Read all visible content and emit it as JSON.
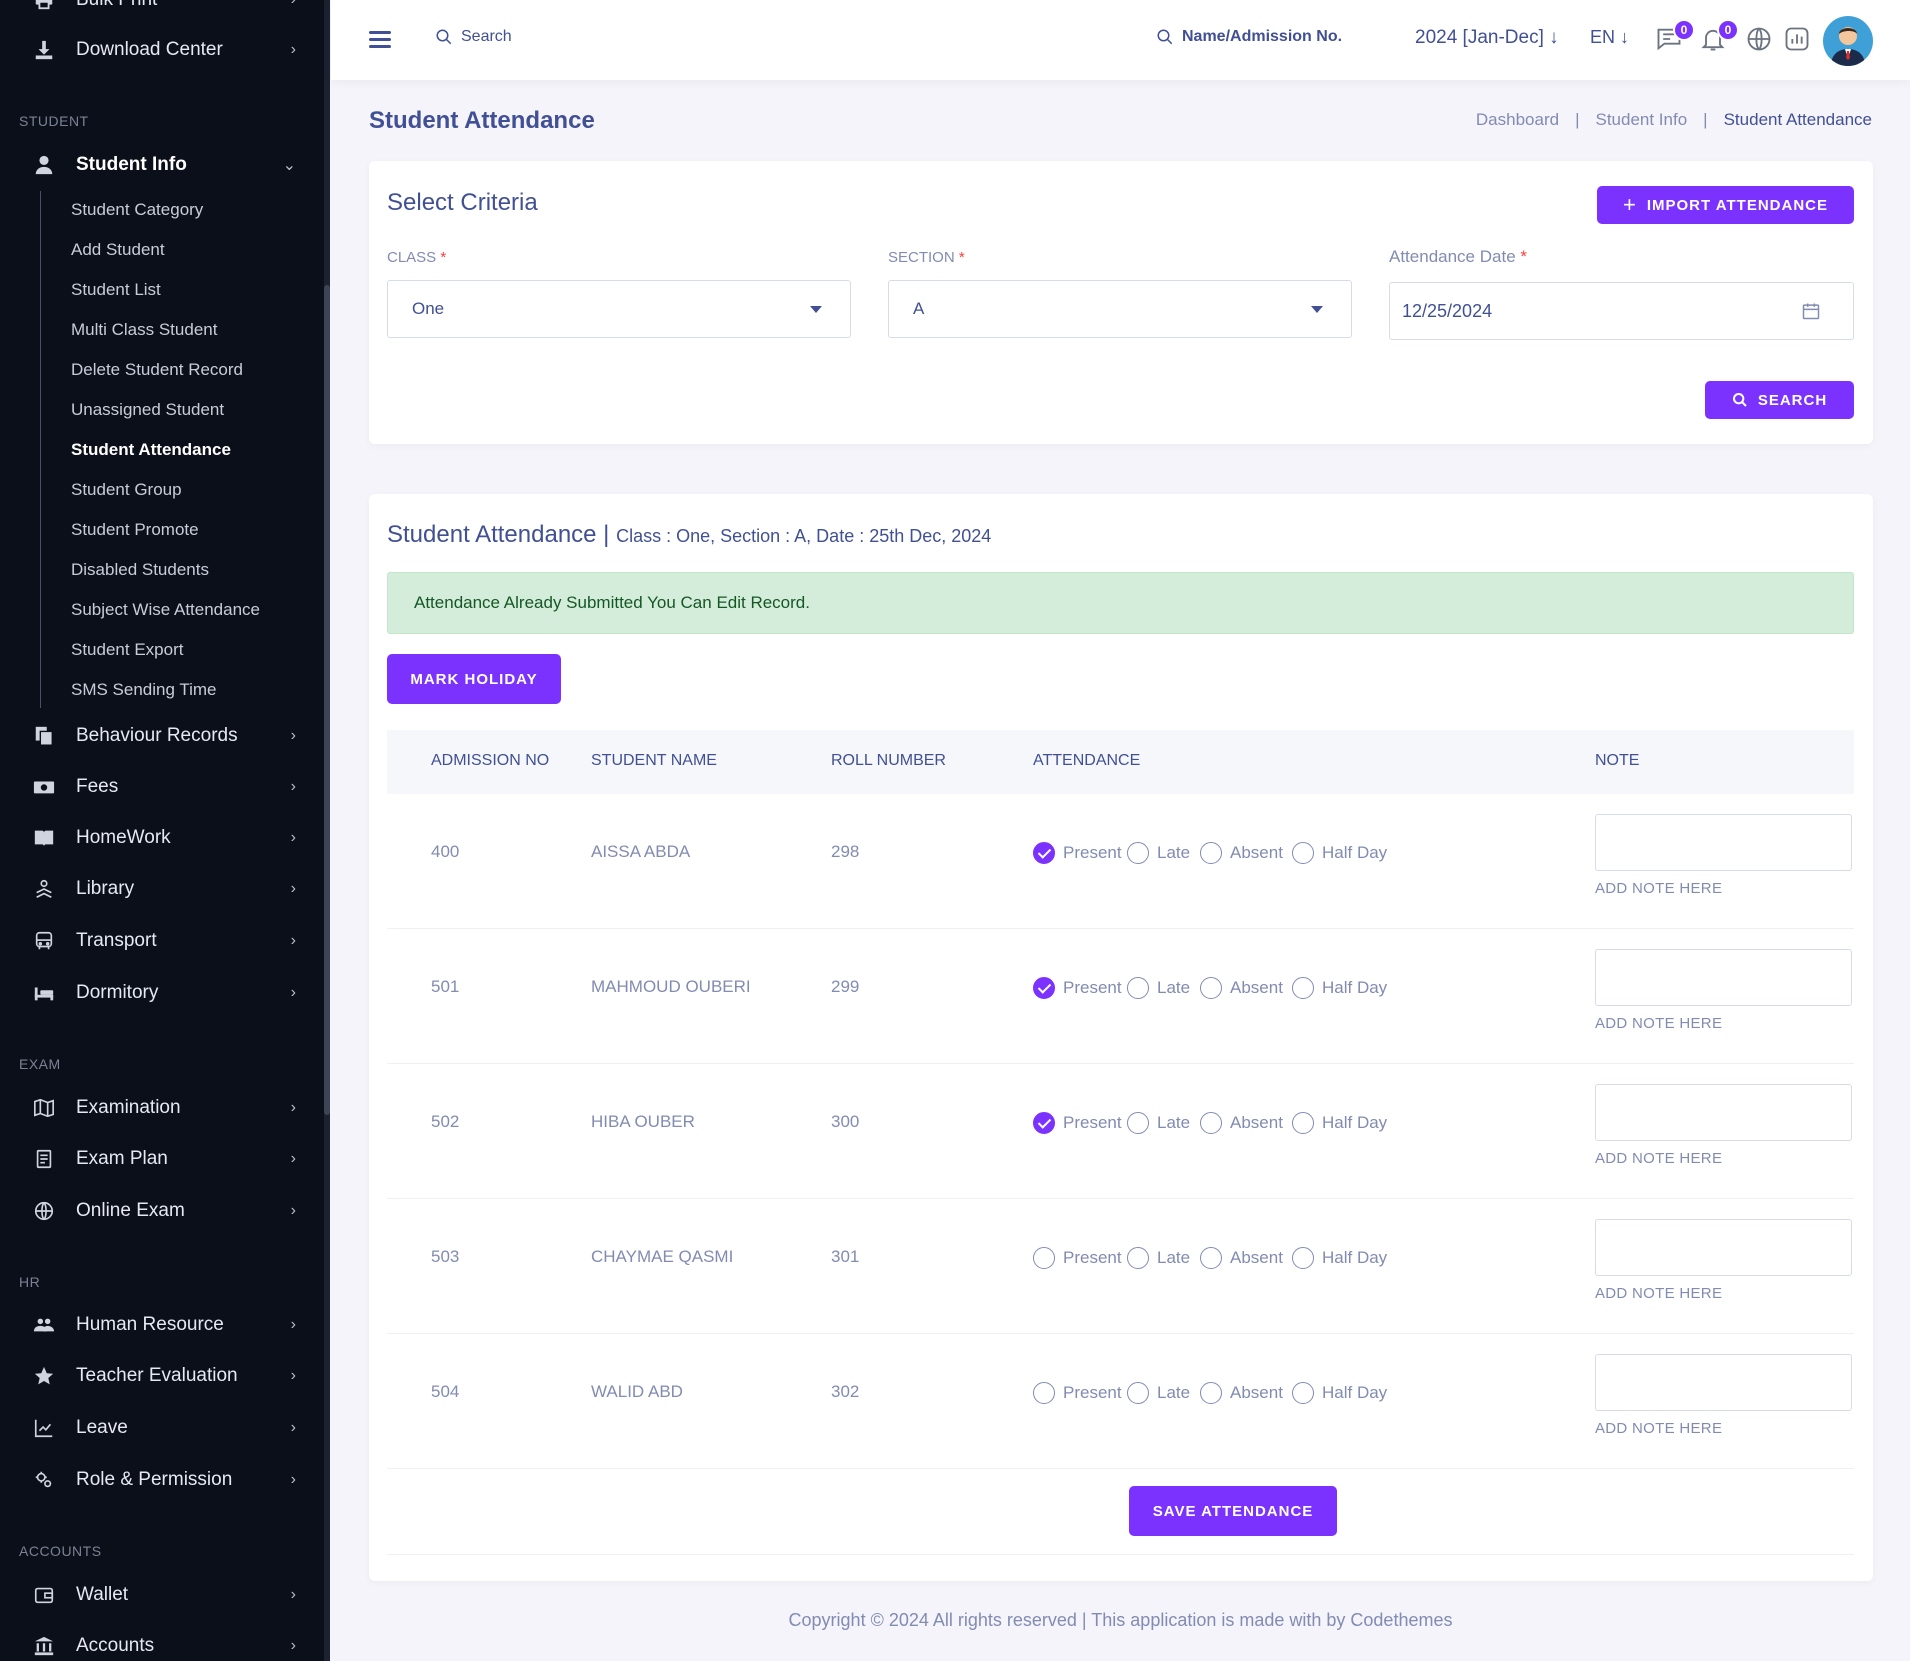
{
  "sidebar": {
    "top_items": [
      {
        "label": "Bulk Print",
        "icon": "printer-icon"
      },
      {
        "label": "Download Center",
        "icon": "download-icon"
      }
    ],
    "sections": {
      "student": "STUDENT",
      "exam": "EXAM",
      "hr": "HR",
      "accounts": "ACCOUNTS"
    },
    "student_info": {
      "label": "Student Info",
      "icon": "user-icon"
    },
    "student_sub": [
      "Student Category",
      "Add Student",
      "Student List",
      "Multi Class Student",
      "Delete Student Record",
      "Unassigned Student",
      "Student Attendance",
      "Student Group",
      "Student Promote",
      "Disabled Students",
      "Subject Wise Attendance",
      "Student Export",
      "SMS Sending Time"
    ],
    "student_items": [
      {
        "label": "Behaviour Records",
        "icon": "files-icon"
      },
      {
        "label": "Fees",
        "icon": "money-icon"
      },
      {
        "label": "HomeWork",
        "icon": "book-icon"
      },
      {
        "label": "Library",
        "icon": "library-icon"
      },
      {
        "label": "Transport",
        "icon": "bus-icon"
      },
      {
        "label": "Dormitory",
        "icon": "bed-icon"
      }
    ],
    "exam_items": [
      {
        "label": "Examination",
        "icon": "map-icon"
      },
      {
        "label": "Exam Plan",
        "icon": "clipboard-icon"
      },
      {
        "label": "Online Exam",
        "icon": "globe-icon"
      }
    ],
    "hr_items": [
      {
        "label": "Human Resource",
        "icon": "users-icon"
      },
      {
        "label": "Teacher Evaluation",
        "icon": "star-icon"
      },
      {
        "label": "Leave",
        "icon": "leave-icon"
      },
      {
        "label": "Role & Permission",
        "icon": "gears-icon"
      }
    ],
    "accounts_items": [
      {
        "label": "Wallet",
        "icon": "wallet-icon"
      },
      {
        "label": "Accounts",
        "icon": "bank-icon"
      }
    ]
  },
  "topbar": {
    "search_placeholder": "Search",
    "admission_search": "Name/Admission No.",
    "year": "2024 [Jan-Dec]",
    "lang": "EN",
    "messages_count": "0",
    "notifications_count": "0"
  },
  "page": {
    "title": "Student Attendance",
    "breadcrumbs": [
      "Dashboard",
      "Student Info",
      "Student Attendance"
    ]
  },
  "criteria": {
    "title": "Select Criteria",
    "import_button": "IMPORT ATTENDANCE",
    "class_label": "CLASS",
    "class_value": "One",
    "section_label": "SECTION",
    "section_value": "A",
    "date_label": "Attendance Date",
    "date_value": "12/25/2024",
    "required_mark": "*",
    "search_button": "SEARCH"
  },
  "attendance": {
    "title": "Student Attendance |",
    "meta": "Class : One, Section : A, Date : 25th Dec, 2024",
    "alert": "Attendance Already Submitted You Can Edit Record.",
    "holiday_button": "MARK HOLIDAY",
    "columns": [
      "ADMISSION NO",
      "STUDENT NAME",
      "ROLL NUMBER",
      "ATTENDANCE",
      "NOTE"
    ],
    "options": [
      "Present",
      "Late",
      "Absent",
      "Half Day"
    ],
    "note_label": "ADD NOTE HERE",
    "rows": [
      {
        "admission": "400",
        "name": "AISSA ABDA",
        "roll": "298",
        "selected": "Present"
      },
      {
        "admission": "501",
        "name": "MAHMOUD OUBERI",
        "roll": "299",
        "selected": "Present"
      },
      {
        "admission": "502",
        "name": "HIBA OUBER",
        "roll": "300",
        "selected": "Present"
      },
      {
        "admission": "503",
        "name": "CHAYMAE QASMI",
        "roll": "301",
        "selected": ""
      },
      {
        "admission": "504",
        "name": "WALID ABD",
        "roll": "302",
        "selected": ""
      }
    ],
    "save_button": "SAVE ATTENDANCE"
  },
  "footer": "Copyright © 2024 All rights reserved | This application is made with by Codethemes",
  "colors": {
    "accent": "#7c32ff",
    "text": "#415094",
    "muted": "#828bb2",
    "sidebar": "#0b0f1a"
  }
}
